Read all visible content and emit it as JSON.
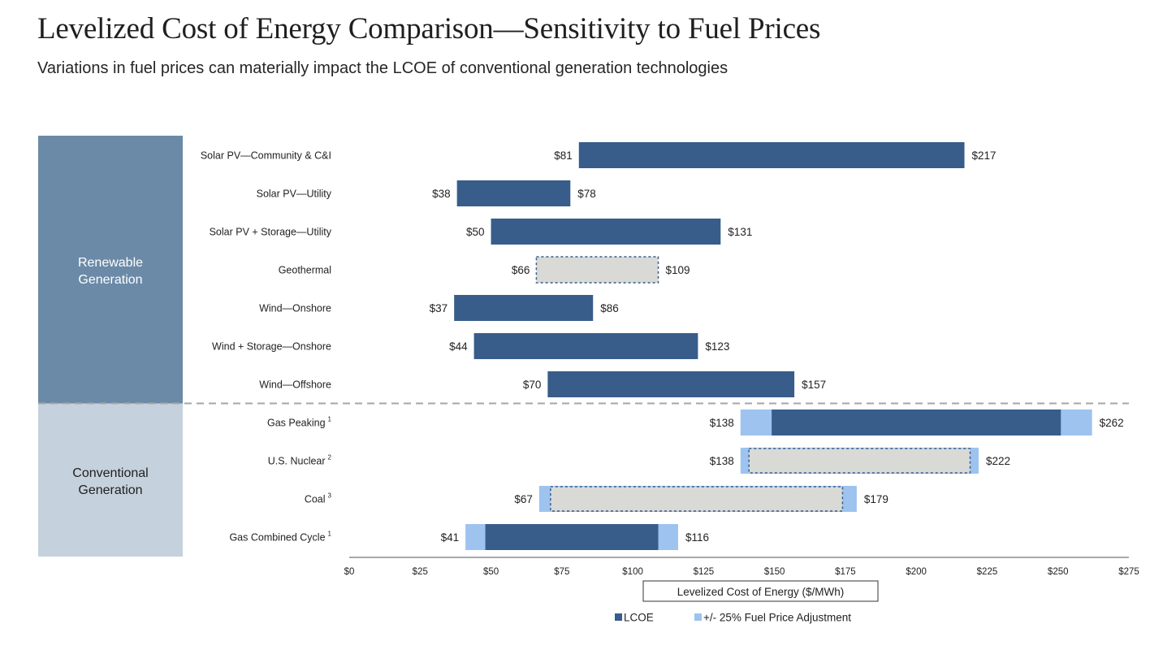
{
  "header": {
    "title": "Levelized Cost of Energy Comparison—Sensitivity to Fuel Prices",
    "subtitle": "Variations in fuel prices can materially impact the LCOE of conventional generation technologies"
  },
  "colors": {
    "lcoe": "#385d8a",
    "fuel_adjustment": "#9dc3ee",
    "no_fuel_impact_fill": "#d9d9d6",
    "no_fuel_impact_border": "#385d8a",
    "renewable_group": "#6b8aa7",
    "conventional_group": "#c5d1dc",
    "divider": "#a6a6a6"
  },
  "chart_data": {
    "type": "bar",
    "orientation": "horizontal-floating",
    "xlabel": "Levelized Cost of Energy ($/MWh)",
    "xlim": [
      0,
      275
    ],
    "xticks": [
      0,
      25,
      50,
      75,
      100,
      125,
      150,
      175,
      200,
      225,
      250,
      275
    ],
    "tick_prefix": "$",
    "groups": [
      {
        "name": "Renewable\nGeneration",
        "lines": [
          "Renewable",
          "Generation"
        ],
        "categories": 7,
        "text_color": "#ffffff"
      },
      {
        "name": "Conventional\nGeneration",
        "lines": [
          "Conventional",
          "Generation"
        ],
        "categories": 4,
        "text_color": "#1f1f1f"
      }
    ],
    "categories": [
      {
        "label": "Solar PV—Community & C&I",
        "footnote": "",
        "low": 81,
        "high": 217,
        "style": "lcoe",
        "low_label": "$81",
        "high_label": "$217"
      },
      {
        "label": "Solar PV—Utility",
        "footnote": "",
        "low": 38,
        "high": 78,
        "style": "lcoe",
        "low_label": "$38",
        "high_label": "$78"
      },
      {
        "label": "Solar PV + Storage—Utility",
        "footnote": "",
        "low": 50,
        "high": 131,
        "style": "lcoe",
        "low_label": "$50",
        "high_label": "$131"
      },
      {
        "label": "Geothermal",
        "footnote": "",
        "low": 66,
        "high": 109,
        "style": "no-fuel",
        "low_label": "$66",
        "high_label": "$109"
      },
      {
        "label": "Wind—Onshore",
        "footnote": "",
        "low": 37,
        "high": 86,
        "style": "lcoe",
        "low_label": "$37",
        "high_label": "$86"
      },
      {
        "label": "Wind + Storage—Onshore",
        "footnote": "",
        "low": 44,
        "high": 123,
        "style": "lcoe",
        "low_label": "$44",
        "high_label": "$123"
      },
      {
        "label": "Wind—Offshore",
        "footnote": "",
        "low": 70,
        "high": 157,
        "style": "lcoe",
        "low_label": "$70",
        "high_label": "$157"
      },
      {
        "label": "Gas Peaking",
        "footnote": "1",
        "low": 138,
        "high": 262,
        "core_low": 149,
        "core_high": 251,
        "style": "lcoe-fuel",
        "low_label": "$138",
        "high_label": "$262"
      },
      {
        "label": "U.S. Nuclear",
        "footnote": "2",
        "low": 138,
        "high": 222,
        "core_low": 141,
        "core_high": 219,
        "style": "no-fuel-fuel",
        "low_label": "$138",
        "high_label": "$222"
      },
      {
        "label": "Coal",
        "footnote": "3",
        "low": 67,
        "high": 179,
        "core_low": 71,
        "core_high": 174,
        "style": "no-fuel-fuel",
        "low_label": "$67",
        "high_label": "$179"
      },
      {
        "label": "Gas Combined Cycle",
        "footnote": "1",
        "low": 41,
        "high": 116,
        "core_low": 48,
        "core_high": 109,
        "style": "lcoe-fuel",
        "low_label": "$41",
        "high_label": "$116"
      }
    ],
    "legend": {
      "position": "bottom-center",
      "items": [
        {
          "label": "LCOE",
          "color_key": "lcoe"
        },
        {
          "label": "+/- 25% Fuel Price Adjustment",
          "color_key": "fuel_adjustment"
        }
      ]
    }
  }
}
